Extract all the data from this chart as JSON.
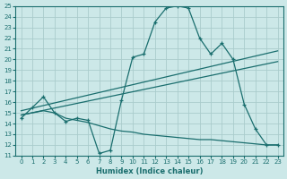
{
  "xlabel": "Humidex (Indice chaleur)",
  "xlim": [
    -0.5,
    23.5
  ],
  "ylim": [
    11,
    25
  ],
  "xticks": [
    0,
    1,
    2,
    3,
    4,
    5,
    6,
    7,
    8,
    9,
    10,
    11,
    12,
    13,
    14,
    15,
    16,
    17,
    18,
    19,
    20,
    21,
    22,
    23
  ],
  "yticks": [
    11,
    12,
    13,
    14,
    15,
    16,
    17,
    18,
    19,
    20,
    21,
    22,
    23,
    24,
    25
  ],
  "bg_color": "#cce8e8",
  "line_color": "#1a6e6e",
  "grid_color": "#aacccc",
  "lines": [
    {
      "x": [
        0,
        1,
        2,
        3,
        4,
        5,
        6,
        7,
        8,
        9,
        10,
        11,
        12,
        13,
        14,
        15,
        16,
        17,
        18,
        19,
        20,
        21,
        22,
        23
      ],
      "y": [
        14.5,
        15.5,
        16.5,
        15.0,
        14.2,
        14.5,
        14.3,
        11.2,
        11.5,
        16.2,
        20.2,
        20.5,
        23.5,
        24.8,
        25.0,
        24.8,
        22.0,
        20.5,
        21.5,
        20.0,
        15.8,
        13.5,
        12.0,
        12.0
      ],
      "markers": true
    },
    {
      "x": [
        0,
        23
      ],
      "y": [
        15.2,
        20.8
      ],
      "markers": false
    },
    {
      "x": [
        0,
        23
      ],
      "y": [
        14.8,
        19.8
      ],
      "markers": false
    },
    {
      "x": [
        0,
        1,
        2,
        3,
        4,
        5,
        6,
        7,
        8,
        9,
        10,
        11,
        12,
        13,
        14,
        15,
        16,
        17,
        18,
        19,
        20,
        21,
        22,
        23
      ],
      "y": [
        14.8,
        15.0,
        15.2,
        15.0,
        14.5,
        14.3,
        14.1,
        13.8,
        13.5,
        13.3,
        13.2,
        13.0,
        12.9,
        12.8,
        12.7,
        12.6,
        12.5,
        12.5,
        12.4,
        12.3,
        12.2,
        12.1,
        12.0,
        12.0
      ],
      "markers": false
    }
  ]
}
